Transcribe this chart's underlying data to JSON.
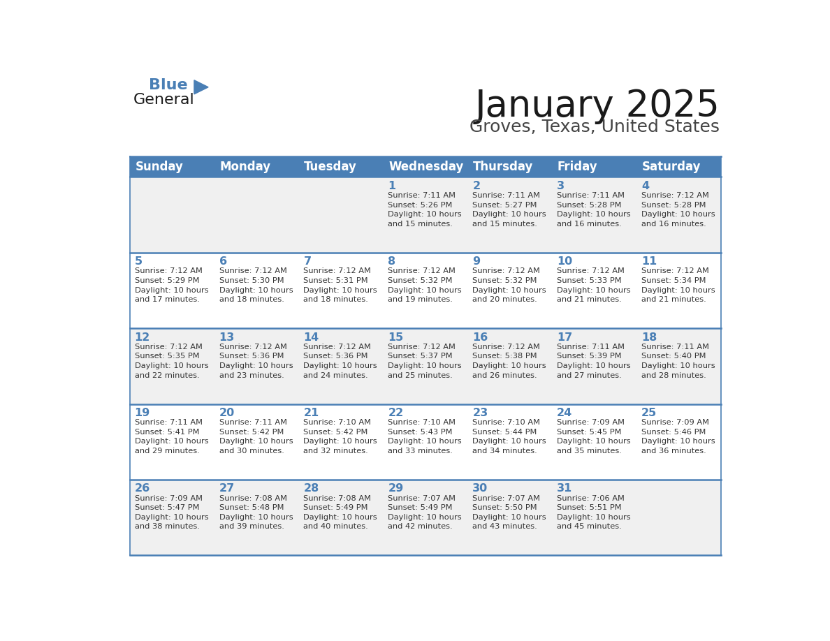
{
  "title": "January 2025",
  "subtitle": "Groves, Texas, United States",
  "days_of_week": [
    "Sunday",
    "Monday",
    "Tuesday",
    "Wednesday",
    "Thursday",
    "Friday",
    "Saturday"
  ],
  "header_bg": "#4a7fb5",
  "header_text_color": "#ffffff",
  "cell_bg_odd": "#f0f0f0",
  "cell_bg_even": "#ffffff",
  "row_border_color": "#4a7fb5",
  "day_number_color": "#4a7fb5",
  "cell_text_color": "#333333",
  "title_color": "#1a1a1a",
  "subtitle_color": "#444444",
  "logo_general_color": "#1a1a1a",
  "logo_blue_color": "#4a7fb5",
  "weeks": [
    [
      {
        "day": null,
        "info": null
      },
      {
        "day": null,
        "info": null
      },
      {
        "day": null,
        "info": null
      },
      {
        "day": 1,
        "info": "Sunrise: 7:11 AM\nSunset: 5:26 PM\nDaylight: 10 hours\nand 15 minutes."
      },
      {
        "day": 2,
        "info": "Sunrise: 7:11 AM\nSunset: 5:27 PM\nDaylight: 10 hours\nand 15 minutes."
      },
      {
        "day": 3,
        "info": "Sunrise: 7:11 AM\nSunset: 5:28 PM\nDaylight: 10 hours\nand 16 minutes."
      },
      {
        "day": 4,
        "info": "Sunrise: 7:12 AM\nSunset: 5:28 PM\nDaylight: 10 hours\nand 16 minutes."
      }
    ],
    [
      {
        "day": 5,
        "info": "Sunrise: 7:12 AM\nSunset: 5:29 PM\nDaylight: 10 hours\nand 17 minutes."
      },
      {
        "day": 6,
        "info": "Sunrise: 7:12 AM\nSunset: 5:30 PM\nDaylight: 10 hours\nand 18 minutes."
      },
      {
        "day": 7,
        "info": "Sunrise: 7:12 AM\nSunset: 5:31 PM\nDaylight: 10 hours\nand 18 minutes."
      },
      {
        "day": 8,
        "info": "Sunrise: 7:12 AM\nSunset: 5:32 PM\nDaylight: 10 hours\nand 19 minutes."
      },
      {
        "day": 9,
        "info": "Sunrise: 7:12 AM\nSunset: 5:32 PM\nDaylight: 10 hours\nand 20 minutes."
      },
      {
        "day": 10,
        "info": "Sunrise: 7:12 AM\nSunset: 5:33 PM\nDaylight: 10 hours\nand 21 minutes."
      },
      {
        "day": 11,
        "info": "Sunrise: 7:12 AM\nSunset: 5:34 PM\nDaylight: 10 hours\nand 21 minutes."
      }
    ],
    [
      {
        "day": 12,
        "info": "Sunrise: 7:12 AM\nSunset: 5:35 PM\nDaylight: 10 hours\nand 22 minutes."
      },
      {
        "day": 13,
        "info": "Sunrise: 7:12 AM\nSunset: 5:36 PM\nDaylight: 10 hours\nand 23 minutes."
      },
      {
        "day": 14,
        "info": "Sunrise: 7:12 AM\nSunset: 5:36 PM\nDaylight: 10 hours\nand 24 minutes."
      },
      {
        "day": 15,
        "info": "Sunrise: 7:12 AM\nSunset: 5:37 PM\nDaylight: 10 hours\nand 25 minutes."
      },
      {
        "day": 16,
        "info": "Sunrise: 7:12 AM\nSunset: 5:38 PM\nDaylight: 10 hours\nand 26 minutes."
      },
      {
        "day": 17,
        "info": "Sunrise: 7:11 AM\nSunset: 5:39 PM\nDaylight: 10 hours\nand 27 minutes."
      },
      {
        "day": 18,
        "info": "Sunrise: 7:11 AM\nSunset: 5:40 PM\nDaylight: 10 hours\nand 28 minutes."
      }
    ],
    [
      {
        "day": 19,
        "info": "Sunrise: 7:11 AM\nSunset: 5:41 PM\nDaylight: 10 hours\nand 29 minutes."
      },
      {
        "day": 20,
        "info": "Sunrise: 7:11 AM\nSunset: 5:42 PM\nDaylight: 10 hours\nand 30 minutes."
      },
      {
        "day": 21,
        "info": "Sunrise: 7:10 AM\nSunset: 5:42 PM\nDaylight: 10 hours\nand 32 minutes."
      },
      {
        "day": 22,
        "info": "Sunrise: 7:10 AM\nSunset: 5:43 PM\nDaylight: 10 hours\nand 33 minutes."
      },
      {
        "day": 23,
        "info": "Sunrise: 7:10 AM\nSunset: 5:44 PM\nDaylight: 10 hours\nand 34 minutes."
      },
      {
        "day": 24,
        "info": "Sunrise: 7:09 AM\nSunset: 5:45 PM\nDaylight: 10 hours\nand 35 minutes."
      },
      {
        "day": 25,
        "info": "Sunrise: 7:09 AM\nSunset: 5:46 PM\nDaylight: 10 hours\nand 36 minutes."
      }
    ],
    [
      {
        "day": 26,
        "info": "Sunrise: 7:09 AM\nSunset: 5:47 PM\nDaylight: 10 hours\nand 38 minutes."
      },
      {
        "day": 27,
        "info": "Sunrise: 7:08 AM\nSunset: 5:48 PM\nDaylight: 10 hours\nand 39 minutes."
      },
      {
        "day": 28,
        "info": "Sunrise: 7:08 AM\nSunset: 5:49 PM\nDaylight: 10 hours\nand 40 minutes."
      },
      {
        "day": 29,
        "info": "Sunrise: 7:07 AM\nSunset: 5:49 PM\nDaylight: 10 hours\nand 42 minutes."
      },
      {
        "day": 30,
        "info": "Sunrise: 7:07 AM\nSunset: 5:50 PM\nDaylight: 10 hours\nand 43 minutes."
      },
      {
        "day": 31,
        "info": "Sunrise: 7:06 AM\nSunset: 5:51 PM\nDaylight: 10 hours\nand 45 minutes."
      },
      {
        "day": null,
        "info": null
      }
    ]
  ]
}
